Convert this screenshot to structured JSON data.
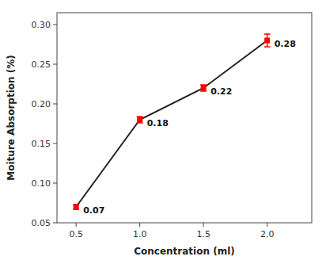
{
  "chart_data": {
    "type": "line",
    "x": [
      0.5,
      1.0,
      1.5,
      2.0
    ],
    "values": [
      0.07,
      0.18,
      0.22,
      0.28
    ],
    "errors": [
      0.003,
      0.004,
      0.004,
      0.008
    ],
    "xlabel": "Concentration (ml)",
    "ylabel": "Moiture Absorption (%)",
    "xlim": [
      0.35,
      2.35
    ],
    "ylim": [
      0.05,
      0.315
    ],
    "xticks": [
      0.5,
      {
        "value": 1.0,
        "label": "1.0"
      },
      1.5,
      {
        "value": 2.0,
        "label": "2.0"
      }
    ],
    "yticks": [
      0.05,
      {
        "value": 0.1,
        "label": "0.10"
      },
      0.15,
      {
        "value": 0.2,
        "label": "0.20"
      },
      0.25,
      {
        "value": 0.3,
        "label": "0.30"
      }
    ],
    "color": "#ff0000",
    "marker": "square",
    "data_labels": true,
    "grid": false
  }
}
